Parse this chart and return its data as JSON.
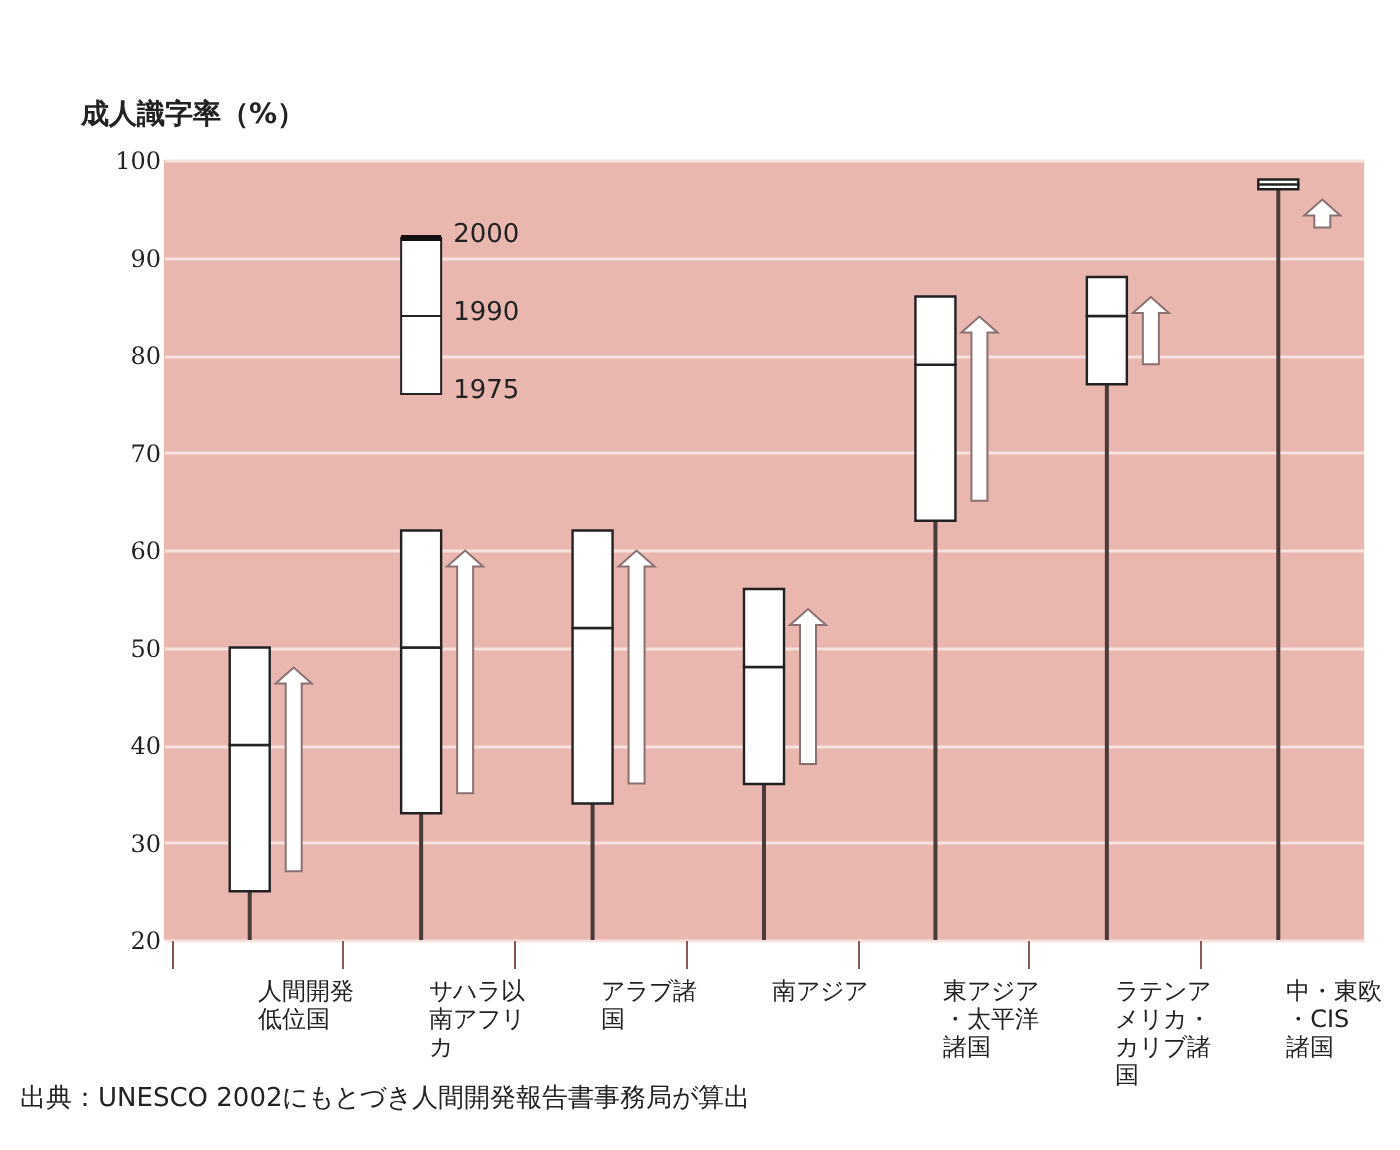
{
  "chart_data": {
    "type": "bar",
    "ylabel": "成人識字率（%）",
    "categories": [
      "人間開発低位国",
      "サハラ以南アフリカ",
      "アラブ諸国",
      "南アジア",
      "東アジア・太平洋諸国",
      "ラテンアメリカ・カリブ諸国",
      "中・東欧・CIS諸国"
    ],
    "series": [
      {
        "color": "#4a3a3a",
        "base": [
          20,
          20,
          20,
          20,
          20,
          20,
          20
        ],
        "values": [
          5,
          13,
          14,
          16,
          43,
          57,
          77
        ]
      },
      {
        "color": "#ffffff",
        "base": [
          25,
          33,
          34,
          36,
          63,
          77,
          97
        ],
        "values": [
          15,
          17,
          18,
          12,
          16,
          7,
          0.5
        ]
      },
      {
        "color": "#ffffff",
        "base": [
          40,
          50,
          52,
          48,
          79,
          84,
          97.5
        ],
        "values": [
          10,
          12,
          10,
          8,
          7,
          4,
          0.5
        ]
      }
    ],
    "ylim": [
      20,
      100
    ],
    "yticks": [
      20,
      30,
      40,
      50,
      60,
      70,
      80,
      90,
      100
    ],
    "grid": "y",
    "annotations": [
      "2000",
      "1990",
      "1975",
      "出典：UNESCO 2002にもとづき人間開発報告書事務局が算出"
    ]
  }
}
